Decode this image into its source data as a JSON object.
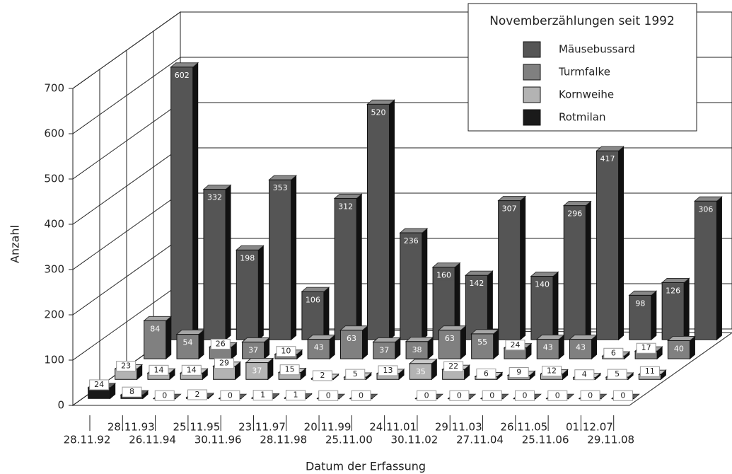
{
  "chart_data": {
    "type": "bar3d",
    "legend_title": "Novemberzählungen seit 1992",
    "x_label": "Datum der Erfassung",
    "y_label": "Anzahl",
    "categories": [
      "28.11.92",
      "28.11.93",
      "26.11.94",
      "25.11.95",
      "30.11.96",
      "23.11.97",
      "28.11.98",
      "20.11.99",
      "25.11.00",
      "24.11.01",
      "30.11.02",
      "29.11.03",
      "27.11.04",
      "26.11.05",
      "25.11.06",
      "01.12.07",
      "29.11.08"
    ],
    "series": [
      {
        "name": "Mäusebussard",
        "color": "#555555",
        "values": [
          602,
          332,
          198,
          353,
          106,
          312,
          520,
          236,
          160,
          142,
          307,
          140,
          296,
          417,
          98,
          126,
          306
        ]
      },
      {
        "name": "Turmfalke",
        "color": "#808080",
        "values": [
          84,
          54,
          26,
          37,
          10,
          43,
          63,
          37,
          38,
          63,
          55,
          24,
          43,
          43,
          6,
          17,
          40
        ]
      },
      {
        "name": "Kornweihe",
        "color": "#b3b3b3",
        "values": [
          23,
          14,
          14,
          29,
          37,
          15,
          2,
          5,
          13,
          35,
          22,
          6,
          9,
          12,
          4,
          5,
          11
        ]
      },
      {
        "name": "Rotmilan",
        "color": "#1a1a1a",
        "values": [
          24,
          8,
          0,
          2,
          0,
          1,
          1,
          0,
          0,
          null,
          0,
          0,
          0,
          0,
          0,
          0,
          0
        ]
      }
    ],
    "ylim": [
      0,
      700
    ],
    "yticks": [
      0,
      100,
      200,
      300,
      400,
      500,
      600,
      700
    ],
    "grid": true
  }
}
